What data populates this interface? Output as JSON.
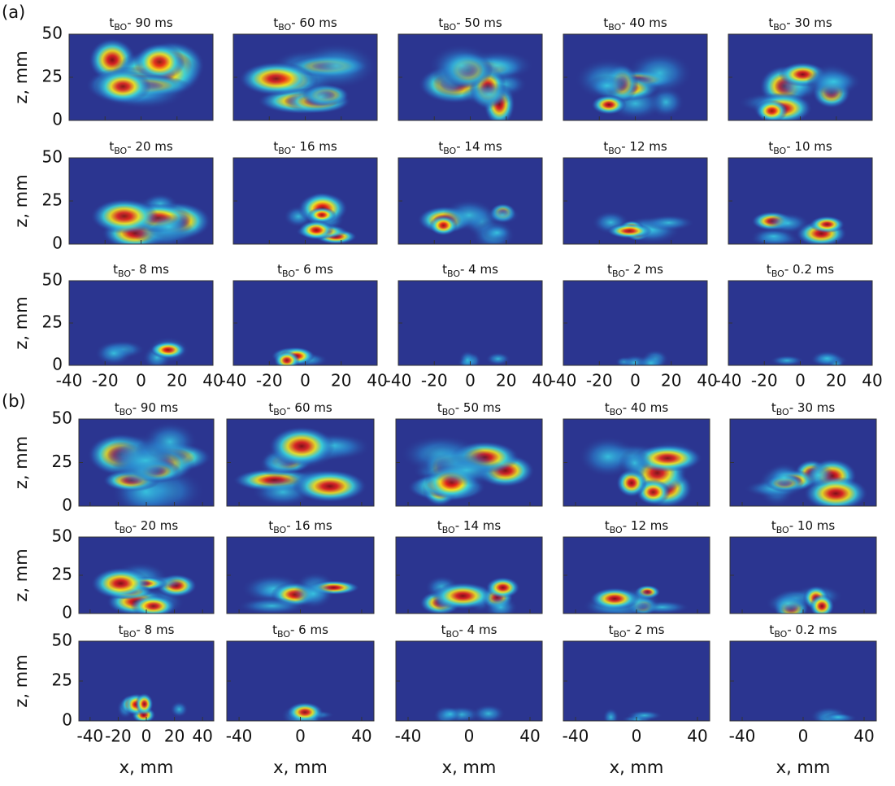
{
  "title_symbol": "t",
  "title_subscript": "BO",
  "panel_times": [
    "- 90 ms",
    "- 60 ms",
    "- 50 ms",
    "- 40 ms",
    "- 30 ms",
    "- 20 ms",
    "- 16 ms",
    "- 14 ms",
    "- 12 ms",
    "- 10 ms",
    "- 8 ms",
    "- 6 ms",
    "- 4 ms",
    "- 2 ms",
    "- 0.2 ms"
  ],
  "part_a": {
    "label": "(a)",
    "y_label": "z, mm",
    "ylim": [
      0,
      50
    ],
    "yticks": [
      0,
      25,
      50
    ],
    "xlim": [
      -40,
      40
    ],
    "xticks": [
      -40,
      -20,
      0,
      20,
      40
    ]
  },
  "part_b": {
    "label": "(b)",
    "y_label": "z, mm",
    "x_label": "x, mm",
    "ylim": [
      0,
      50
    ],
    "yticks": [
      0,
      25,
      50
    ],
    "xlim": [
      -48,
      48
    ],
    "xticks_first": [
      -40,
      -20,
      0,
      20,
      40
    ],
    "xticks": [
      -40,
      0,
      40
    ]
  }
}
